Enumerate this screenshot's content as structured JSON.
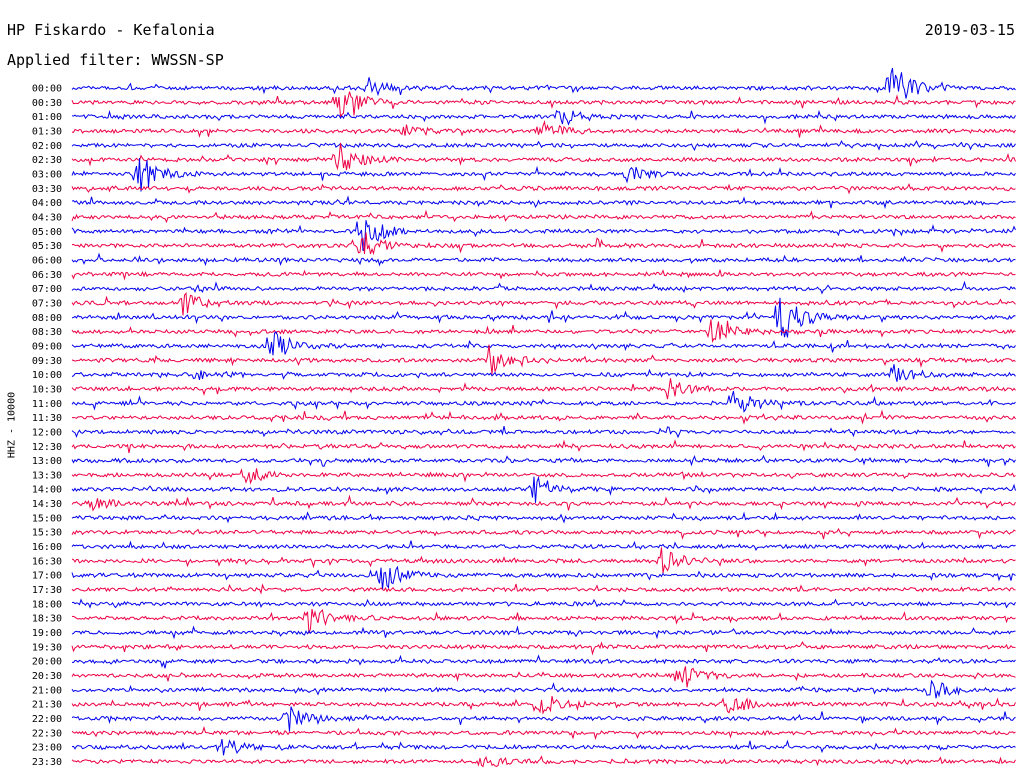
{
  "header": {
    "station": "HP Fiskardo - Kefalonia",
    "filter": "Applied filter: WWSSN-SP",
    "date": "2019-03-15"
  },
  "chart_data": {
    "type": "line",
    "title": "HP Fiskardo - Kefalonia",
    "ylabel": "HHZ - 10000",
    "colors": [
      "#0000ee",
      "#ee0044"
    ],
    "grid": false,
    "row_labels": [
      "00:00",
      "00:30",
      "01:00",
      "01:30",
      "02:00",
      "02:30",
      "03:00",
      "03:30",
      "04:00",
      "04:30",
      "05:00",
      "05:30",
      "06:00",
      "06:30",
      "07:00",
      "07:30",
      "08:00",
      "08:30",
      "09:00",
      "09:30",
      "10:00",
      "10:30",
      "11:00",
      "11:30",
      "12:00",
      "12:30",
      "13:00",
      "13:30",
      "14:00",
      "14:30",
      "15:00",
      "15:30",
      "16:00",
      "16:30",
      "17:00",
      "17:30",
      "18:00",
      "18:30",
      "19:00",
      "19:30",
      "20:00",
      "20:30",
      "21:00",
      "21:30",
      "22:00",
      "22:30",
      "23:00",
      "23:30"
    ],
    "x_range_minutes": [
      0,
      30
    ],
    "events": [
      {
        "row": 0,
        "minute": 9.4,
        "amp": 10
      },
      {
        "row": 0,
        "minute": 26.0,
        "amp": 28
      },
      {
        "row": 1,
        "minute": 8.4,
        "amp": 22
      },
      {
        "row": 2,
        "minute": 15.5,
        "amp": 10
      },
      {
        "row": 3,
        "minute": 10.5,
        "amp": 7
      },
      {
        "row": 3,
        "minute": 14.9,
        "amp": 10
      },
      {
        "row": 5,
        "minute": 8.4,
        "amp": 22
      },
      {
        "row": 6,
        "minute": 2.1,
        "amp": 22
      },
      {
        "row": 6,
        "minute": 17.5,
        "amp": 14
      },
      {
        "row": 10,
        "minute": 9.2,
        "amp": 20
      },
      {
        "row": 11,
        "minute": 9.2,
        "amp": 16
      },
      {
        "row": 15,
        "minute": 3.5,
        "amp": 12
      },
      {
        "row": 16,
        "minute": 22.5,
        "amp": 26
      },
      {
        "row": 17,
        "minute": 20.3,
        "amp": 14
      },
      {
        "row": 18,
        "minute": 6.3,
        "amp": 18
      },
      {
        "row": 19,
        "minute": 13.2,
        "amp": 16
      },
      {
        "row": 20,
        "minute": 4.0,
        "amp": 7
      },
      {
        "row": 20,
        "minute": 26.0,
        "amp": 12
      },
      {
        "row": 21,
        "minute": 19.0,
        "amp": 10
      },
      {
        "row": 22,
        "minute": 21.0,
        "amp": 16
      },
      {
        "row": 27,
        "minute": 5.5,
        "amp": 10
      },
      {
        "row": 28,
        "minute": 14.6,
        "amp": 18
      },
      {
        "row": 29,
        "minute": 0.5,
        "amp": 8
      },
      {
        "row": 33,
        "minute": 18.7,
        "amp": 14
      },
      {
        "row": 34,
        "minute": 9.8,
        "amp": 20
      },
      {
        "row": 37,
        "minute": 7.5,
        "amp": 14
      },
      {
        "row": 41,
        "minute": 19.3,
        "amp": 12
      },
      {
        "row": 42,
        "minute": 27.3,
        "amp": 10
      },
      {
        "row": 43,
        "minute": 14.8,
        "amp": 12
      },
      {
        "row": 43,
        "minute": 20.8,
        "amp": 12
      },
      {
        "row": 44,
        "minute": 6.9,
        "amp": 12
      },
      {
        "row": 46,
        "minute": 4.7,
        "amp": 10
      },
      {
        "row": 47,
        "minute": 13.0,
        "amp": 8
      }
    ]
  }
}
